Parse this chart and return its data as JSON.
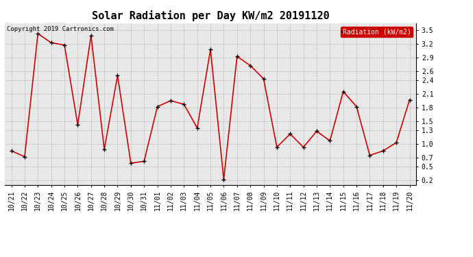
{
  "title": "Solar Radiation per Day KW/m2 20191120",
  "copyright_text": "Copyright 2019 Cartronics.com",
  "legend_label": "Radiation (kW/m2)",
  "dates": [
    "10/21",
    "10/22",
    "10/23",
    "10/24",
    "10/25",
    "10/26",
    "10/27",
    "10/28",
    "10/29",
    "10/30",
    "10/31",
    "11/01",
    "11/02",
    "11/03",
    "11/04",
    "11/05",
    "11/06",
    "11/07",
    "11/08",
    "11/09",
    "11/10",
    "11/11",
    "11/12",
    "11/13",
    "11/14",
    "11/15",
    "11/16",
    "11/17",
    "11/18",
    "11/19",
    "11/20"
  ],
  "values": [
    0.85,
    0.72,
    3.42,
    3.22,
    3.17,
    1.42,
    3.38,
    0.88,
    2.5,
    0.58,
    0.62,
    1.82,
    1.95,
    1.87,
    1.35,
    3.07,
    0.22,
    2.92,
    2.72,
    2.43,
    0.93,
    1.22,
    0.93,
    1.28,
    1.07,
    2.15,
    1.82,
    0.75,
    0.85,
    1.03,
    1.97
  ],
  "line_color": "#cc0000",
  "marker": "+",
  "marker_color": "#000000",
  "marker_size": 4,
  "line_width": 1.2,
  "ylim": [
    0.1,
    3.65
  ],
  "yticks": [
    0.2,
    0.5,
    0.7,
    1.0,
    1.3,
    1.5,
    1.8,
    2.1,
    2.4,
    2.6,
    2.9,
    3.2,
    3.5
  ],
  "grid_color": "#999999",
  "bg_color": "#ffffff",
  "plot_bg_color": "#e8e8e8",
  "title_fontsize": 11,
  "tick_fontsize": 7,
  "copyright_fontsize": 6.5,
  "legend_bg": "#cc0000",
  "legend_text_color": "#ffffff",
  "legend_fontsize": 7
}
